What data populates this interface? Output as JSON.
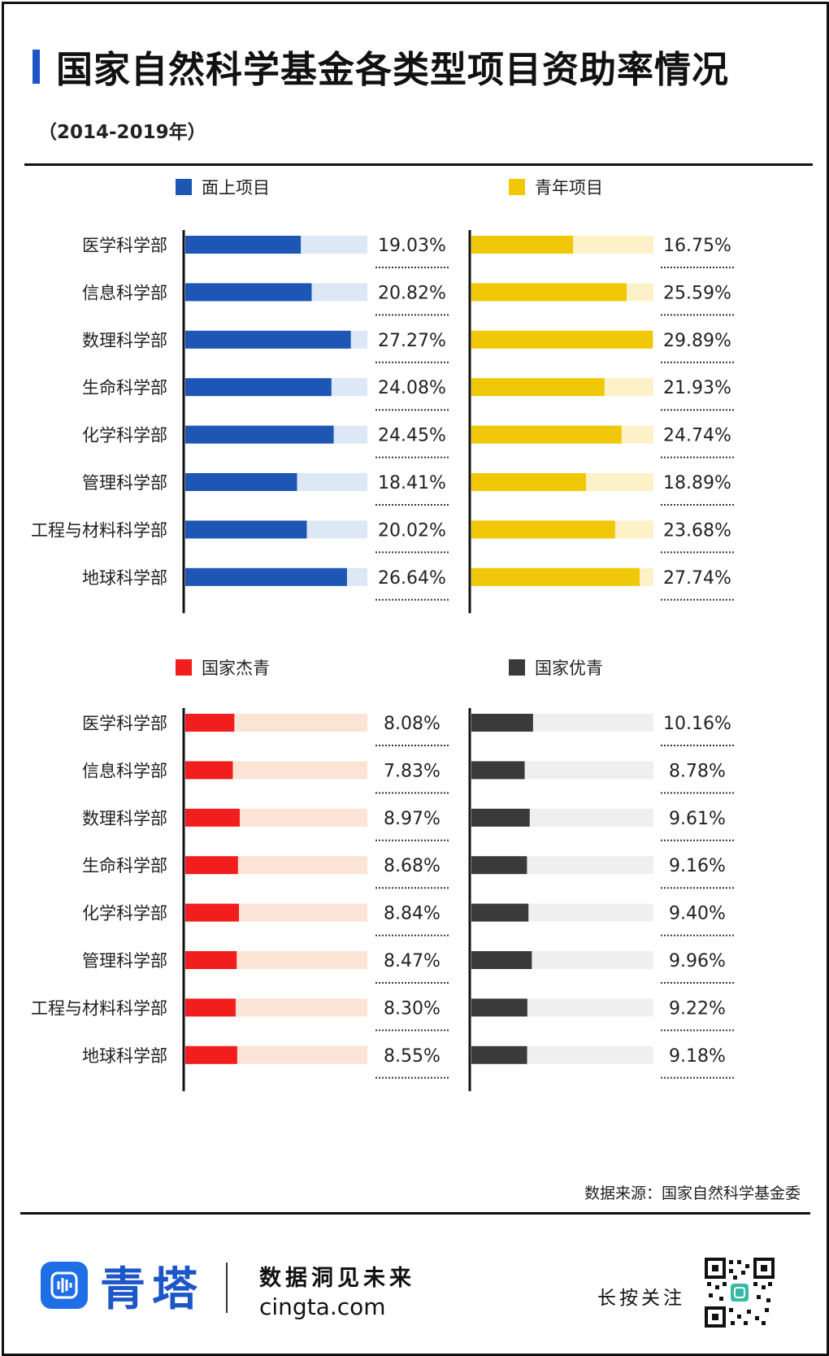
{
  "header": {
    "title": "国家自然科学基金各类型项目资助率情况",
    "subtitle": "（2014-2019年）"
  },
  "categories": [
    "医学科学部",
    "信息科学部",
    "数理科学部",
    "生命科学部",
    "化学科学部",
    "管理科学部",
    "工程与材料科学部",
    "地球科学部"
  ],
  "colors": {
    "general": "#1d56b4",
    "general_track": "#dce8f5",
    "youth": "#f0c808",
    "youth_track": "#fdf1c8",
    "jieqing": "#f21d1d",
    "jieqing_track": "#fbe3d6",
    "youqing": "#3a3a3a",
    "youqing_track": "#efefef"
  },
  "chart_data": [
    {
      "type": "bar",
      "legend": "面上项目",
      "categories": [
        "医学科学部",
        "信息科学部",
        "数理科学部",
        "生命科学部",
        "化学科学部",
        "管理科学部",
        "工程与材料科学部",
        "地球科学部"
      ],
      "values": [
        19.03,
        20.82,
        27.27,
        24.08,
        24.45,
        18.41,
        20.02,
        26.64
      ],
      "labels": [
        "19.03%",
        "20.82%",
        "27.27%",
        "24.08%",
        "24.45%",
        "18.41%",
        "20.02%",
        "26.64%"
      ],
      "xlim": [
        0,
        30
      ]
    },
    {
      "type": "bar",
      "legend": "青年项目",
      "categories": [
        "医学科学部",
        "信息科学部",
        "数理科学部",
        "生命科学部",
        "化学科学部",
        "管理科学部",
        "工程与材料科学部",
        "地球科学部"
      ],
      "values": [
        16.75,
        25.59,
        29.89,
        21.93,
        24.74,
        18.89,
        23.68,
        27.74
      ],
      "labels": [
        "16.75%",
        "25.59%",
        "29.89%",
        "21.93%",
        "24.74%",
        "18.89%",
        "23.68%",
        "27.74%"
      ],
      "xlim": [
        0,
        30
      ]
    },
    {
      "type": "bar",
      "legend": "国家杰青",
      "categories": [
        "医学科学部",
        "信息科学部",
        "数理科学部",
        "生命科学部",
        "化学科学部",
        "管理科学部",
        "工程与材料科学部",
        "地球科学部"
      ],
      "values": [
        8.08,
        7.83,
        8.97,
        8.68,
        8.84,
        8.47,
        8.3,
        8.55
      ],
      "labels": [
        "8.08%",
        "7.83%",
        "8.97%",
        "8.68%",
        "8.84%",
        "8.47%",
        "8.30%",
        "8.55%"
      ],
      "xlim": [
        0,
        30
      ]
    },
    {
      "type": "bar",
      "legend": "国家优青",
      "categories": [
        "医学科学部",
        "信息科学部",
        "数理科学部",
        "生命科学部",
        "化学科学部",
        "管理科学部",
        "工程与材料科学部",
        "地球科学部"
      ],
      "values": [
        10.16,
        8.78,
        9.61,
        9.16,
        9.4,
        9.96,
        9.22,
        9.18
      ],
      "labels": [
        "10.16%",
        "8.78%",
        "9.61%",
        "9.16%",
        "9.40%",
        "9.96%",
        "9.22%",
        "9.18%"
      ],
      "xlim": [
        0,
        30
      ]
    }
  ],
  "source": "数据来源：国家自然科学基金委",
  "footer": {
    "brand": "青塔",
    "slogan": "数据洞见未来",
    "site": "cingta.com",
    "follow": "长按关注",
    "qr_icon": "qr-code-icon",
    "logo_icon": "sound-wave-logo-icon"
  }
}
